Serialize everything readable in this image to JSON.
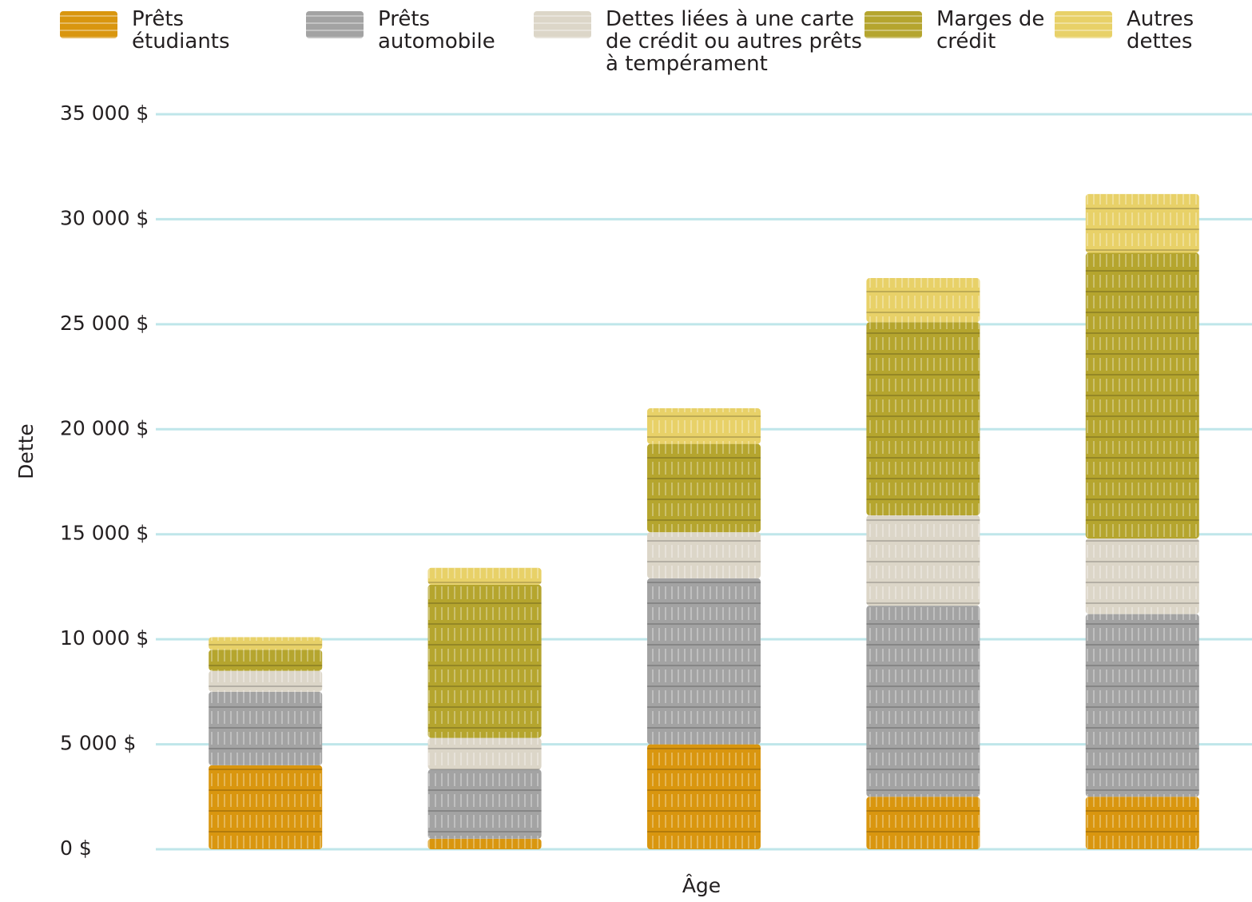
{
  "chart_data": {
    "type": "stacked-bar",
    "y_label": "Dette",
    "x_label": "Âge",
    "categories": [
      null,
      null,
      null,
      null,
      null
    ],
    "series": [
      {
        "name": "Prêts étudiants",
        "color": "#d9960f",
        "values": [
          4000,
          500,
          5000,
          2500,
          2500
        ]
      },
      {
        "name": "Prêts automobile",
        "color": "#a3a3a3",
        "values": [
          3500,
          3300,
          7900,
          9100,
          8700
        ]
      },
      {
        "name": "Dettes liées à une carte de crédit ou autres prêts à tempérament",
        "color": "#dcd6c8",
        "values": [
          1000,
          1500,
          2200,
          4300,
          3600
        ]
      },
      {
        "name": "Marges de crédit",
        "color": "#b5a52e",
        "values": [
          1000,
          7300,
          4200,
          9200,
          13600
        ]
      },
      {
        "name": "Autres dettes",
        "color": "#e8d168",
        "values": [
          600,
          800,
          1700,
          2100,
          2800
        ]
      }
    ],
    "ylim": [
      0,
      35000
    ],
    "yticks": [
      {
        "value": 0,
        "label": "0 $"
      },
      {
        "value": 5000,
        "label": "5 000 $"
      },
      {
        "value": 10000,
        "label": "10 000 $"
      },
      {
        "value": 15000,
        "label": "15 000 $"
      },
      {
        "value": 20000,
        "label": "20 000 $"
      },
      {
        "value": 25000,
        "label": "25 000 $"
      },
      {
        "value": 30000,
        "label": "30 000 $"
      },
      {
        "value": 35000,
        "label": "35 000 $"
      }
    ],
    "grid": true
  }
}
